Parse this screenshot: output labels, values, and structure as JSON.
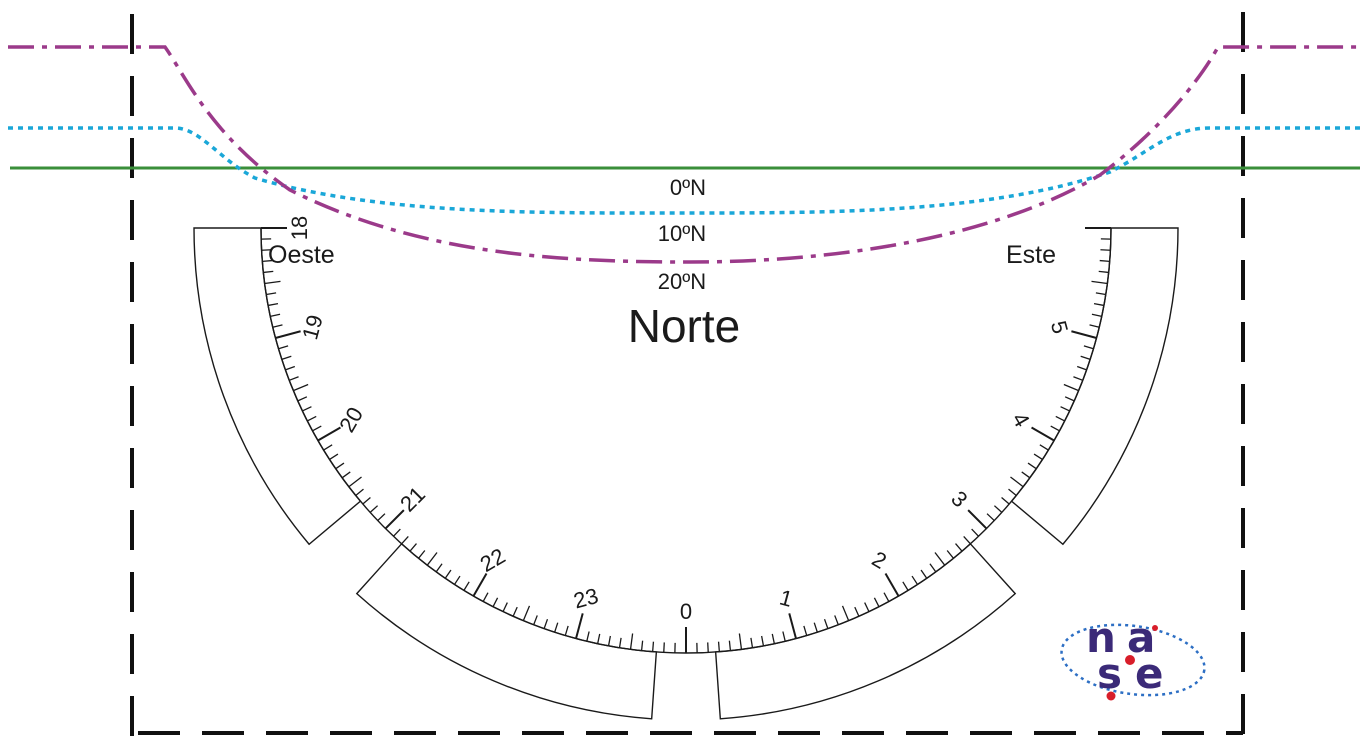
{
  "diagram": {
    "title": "Norte",
    "directions": {
      "west": "Oeste",
      "east": "Este"
    },
    "latitude_lines": [
      {
        "label": "0ºN",
        "latitude_deg": 0,
        "color": "#3a8f3a",
        "style": "solid"
      },
      {
        "label": "10ºN",
        "latitude_deg": 10,
        "color": "#1aa7d8",
        "style": "dotted"
      },
      {
        "label": "20ºN",
        "latitude_deg": 20,
        "color": "#9b3a8a",
        "style": "dash-dot"
      }
    ],
    "hour_scale": {
      "west_labels": [
        "18",
        "19",
        "20",
        "21",
        "22",
        "23"
      ],
      "east_labels": [
        "0",
        "1",
        "2",
        "3",
        "4",
        "5"
      ],
      "ticks_per_hour": 10
    },
    "logo": {
      "letters": [
        "n",
        "a",
        "s",
        "e"
      ],
      "colors": {
        "letters": "#3b2a78",
        "dots": "#d81e2a",
        "orbit": "#2d6fc4"
      }
    },
    "colors": {
      "ink": "#1a1a1a",
      "cut_line": "#111111"
    }
  }
}
